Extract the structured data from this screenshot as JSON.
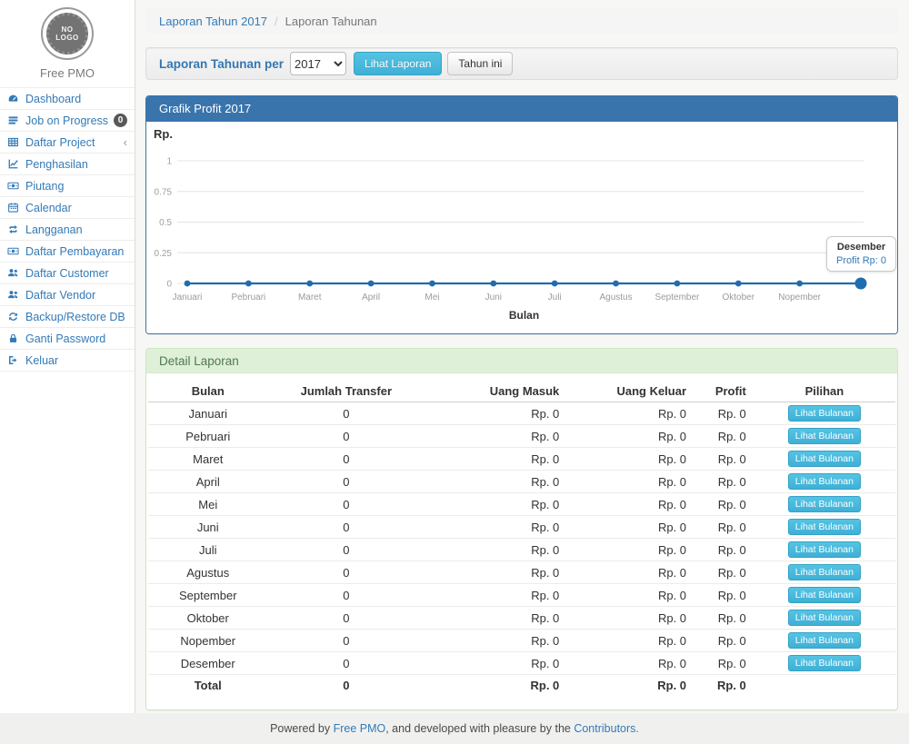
{
  "sidebar": {
    "logo_line1": "NO",
    "logo_line2": "LOGO",
    "brand": "Free PMO",
    "items": [
      {
        "label": "Dashboard",
        "icon": "dashboard-icon"
      },
      {
        "label": "Job on Progress",
        "icon": "tasks-icon",
        "badge": "0"
      },
      {
        "label": "Daftar Project",
        "icon": "table-icon",
        "chevron": "‹"
      },
      {
        "label": "Penghasilan",
        "icon": "line-chart-icon"
      },
      {
        "label": "Piutang",
        "icon": "money-icon"
      },
      {
        "label": "Calendar",
        "icon": "calendar-icon"
      },
      {
        "label": "Langganan",
        "icon": "retweet-icon"
      },
      {
        "label": "Daftar Pembayaran",
        "icon": "money-icon"
      },
      {
        "label": "Daftar Customer",
        "icon": "users-icon"
      },
      {
        "label": "Daftar Vendor",
        "icon": "users-icon"
      },
      {
        "label": "Backup/Restore DB",
        "icon": "refresh-icon"
      },
      {
        "label": "Ganti Password",
        "icon": "lock-icon"
      },
      {
        "label": "Keluar",
        "icon": "sign-out-icon"
      }
    ]
  },
  "breadcrumb": {
    "link": "Laporan Tahun 2017",
    "separator": "/",
    "current": "Laporan Tahunan"
  },
  "filter_bar": {
    "label": "Laporan Tahunan per",
    "year_value": "2017",
    "view_button": "Lihat Laporan",
    "this_year_button": "Tahun ini"
  },
  "chart_data": {
    "type": "line",
    "title": "Grafik Profit 2017",
    "x": [
      "Januari",
      "Pebruari",
      "Maret",
      "April",
      "Mei",
      "Juni",
      "Juli",
      "Agustus",
      "September",
      "Oktober",
      "Nopember",
      "Desember"
    ],
    "series": [
      {
        "name": "Profit",
        "values": [
          0,
          0,
          0,
          0,
          0,
          0,
          0,
          0,
          0,
          0,
          0,
          0
        ]
      }
    ],
    "xlabel": "Bulan",
    "ylabel": "Rp.",
    "y_ticks": [
      1,
      0.75,
      0.5,
      0.25,
      0
    ],
    "ylim": [
      0,
      1
    ],
    "grid": true,
    "legend": false,
    "line_color": "#1f6cb0",
    "x_tick_labels_visible": [
      "Januari",
      "Pebruari",
      "Maret",
      "April",
      "Mei",
      "Juni",
      "Juli",
      "Agustus",
      "September",
      "Oktober",
      "Nopember"
    ],
    "highlighted_point": "Desember",
    "tooltip": {
      "title": "Desember",
      "value": "Profit Rp: 0"
    }
  },
  "report_panel": {
    "title": "Detail Laporan",
    "columns": [
      "Bulan",
      "Jumlah Transfer",
      "Uang Masuk",
      "Uang Keluar",
      "Profit",
      "Pilihan"
    ],
    "action_label": "Lihat Bulanan",
    "rows": [
      {
        "bulan": "Januari",
        "jumlah": "0",
        "masuk": "Rp. 0",
        "keluar": "Rp. 0",
        "profit": "Rp. 0"
      },
      {
        "bulan": "Pebruari",
        "jumlah": "0",
        "masuk": "Rp. 0",
        "keluar": "Rp. 0",
        "profit": "Rp. 0"
      },
      {
        "bulan": "Maret",
        "jumlah": "0",
        "masuk": "Rp. 0",
        "keluar": "Rp. 0",
        "profit": "Rp. 0"
      },
      {
        "bulan": "April",
        "jumlah": "0",
        "masuk": "Rp. 0",
        "keluar": "Rp. 0",
        "profit": "Rp. 0"
      },
      {
        "bulan": "Mei",
        "jumlah": "0",
        "masuk": "Rp. 0",
        "keluar": "Rp. 0",
        "profit": "Rp. 0"
      },
      {
        "bulan": "Juni",
        "jumlah": "0",
        "masuk": "Rp. 0",
        "keluar": "Rp. 0",
        "profit": "Rp. 0"
      },
      {
        "bulan": "Juli",
        "jumlah": "0",
        "masuk": "Rp. 0",
        "keluar": "Rp. 0",
        "profit": "Rp. 0"
      },
      {
        "bulan": "Agustus",
        "jumlah": "0",
        "masuk": "Rp. 0",
        "keluar": "Rp. 0",
        "profit": "Rp. 0"
      },
      {
        "bulan": "September",
        "jumlah": "0",
        "masuk": "Rp. 0",
        "keluar": "Rp. 0",
        "profit": "Rp. 0"
      },
      {
        "bulan": "Oktober",
        "jumlah": "0",
        "masuk": "Rp. 0",
        "keluar": "Rp. 0",
        "profit": "Rp. 0"
      },
      {
        "bulan": "Nopember",
        "jumlah": "0",
        "masuk": "Rp. 0",
        "keluar": "Rp. 0",
        "profit": "Rp. 0"
      },
      {
        "bulan": "Desember",
        "jumlah": "0",
        "masuk": "Rp. 0",
        "keluar": "Rp. 0",
        "profit": "Rp. 0"
      }
    ],
    "total_row": {
      "bulan": "Total",
      "jumlah": "0",
      "masuk": "Rp. 0",
      "keluar": "Rp. 0",
      "profit": "Rp. 0"
    }
  },
  "footer": {
    "prefix": "Powered by ",
    "link_free_pmo": "Free PMO",
    "middle": ", and developed with pleasure by the ",
    "link_contributors": "Contributors."
  },
  "colors": {
    "accent_blue": "#337ab7",
    "panel_header_blue": "#3a74ac",
    "panel_green_bg": "#dff0d8",
    "panel_green_text": "#50794f",
    "info_button": "#46b8da",
    "chart_line": "#1f6cb0"
  }
}
